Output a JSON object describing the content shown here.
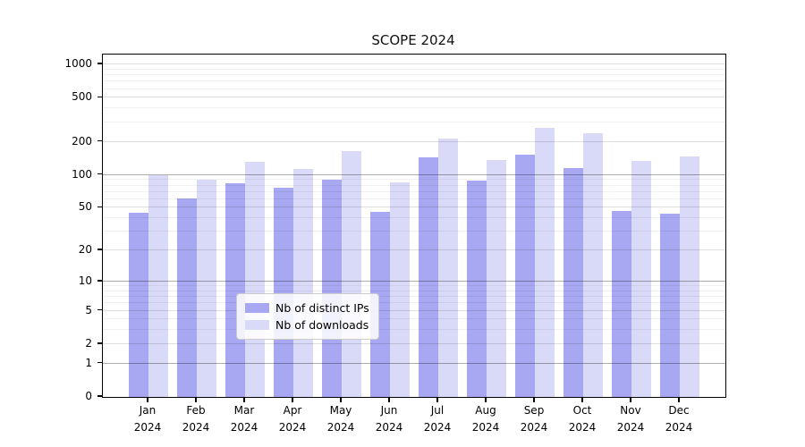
{
  "title": "SCOPE 2024",
  "chart_data": {
    "type": "bar",
    "title": "SCOPE 2024",
    "categories": [
      "Jan 2024",
      "Feb 2024",
      "Mar 2024",
      "Apr 2024",
      "May 2024",
      "Jun 2024",
      "Jul 2024",
      "Aug 2024",
      "Sep 2024",
      "Oct 2024",
      "Nov 2024",
      "Dec 2024"
    ],
    "series": [
      {
        "name": "Nb of distinct IPs",
        "color": "#a7a7f2",
        "values": [
          45,
          61,
          84,
          76,
          91,
          46,
          145,
          88,
          152,
          115,
          47,
          44
        ]
      },
      {
        "name": "Nb of downloads",
        "color": "#d9d9f8",
        "values": [
          100,
          90,
          132,
          114,
          165,
          86,
          212,
          136,
          267,
          238,
          134,
          148
        ]
      }
    ],
    "yscale": "log1p",
    "ylim": [
      0,
      1230
    ],
    "yticks": [
      0,
      1,
      2,
      5,
      10,
      20,
      50,
      100,
      200,
      500,
      1000
    ],
    "minor_yticks": [
      3,
      4,
      6,
      7,
      8,
      9,
      30,
      40,
      60,
      70,
      80,
      90,
      300,
      400,
      600,
      700,
      800,
      900
    ],
    "grid": "both",
    "legend_position": "lower center",
    "xlabel": "",
    "ylabel": ""
  },
  "colors": {
    "background": "#ffffff",
    "axis": "#000000",
    "grid_decade": "rgba(0,0,0,0.32)",
    "grid_major": "rgba(0,0,0,0.13)",
    "grid_minor": "rgba(0,0,0,0.055)",
    "legend_border": "#cccccc"
  }
}
